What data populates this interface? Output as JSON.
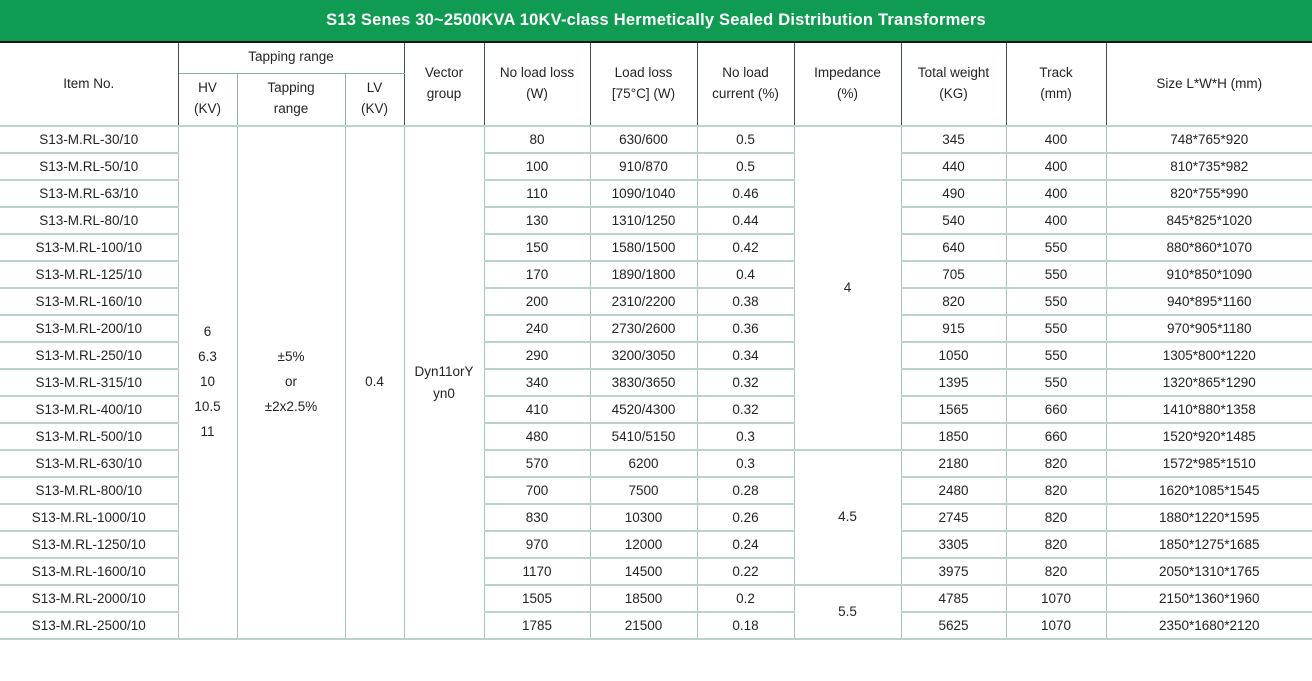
{
  "title": "S13 Senes 30~2500KVA 10KV-class Hermetically Sealed Distribution Transformers",
  "colors": {
    "title_bar_green": "#0f9b51",
    "border_teal": "#a5c6bf",
    "header_border_dark": "#42514c",
    "text": "#242424"
  },
  "headers": {
    "item_no": "Item No.",
    "tapping_group": "Tapping range",
    "hv": "HV\n(KV)",
    "tapping": "Tapping\nrange",
    "lv": "LV\n(KV)",
    "vector": "Vector\ngroup",
    "no_load_loss": "No load loss\n(W)",
    "load_loss": "Load loss\n[75°C] (W)",
    "no_load_current": "No load\ncurrent (%)",
    "impedance": "Impedance\n(%)",
    "total_weight": "Total weight\n(KG)",
    "track": "Track\n(mm)",
    "size": "Size L*W*H (mm)"
  },
  "merged": {
    "hv": "6\n6.3\n10\n10.5\n11",
    "tapping": "±5%\nor\n±2x2.5%",
    "lv": "0.4",
    "vector": "Dyn11orY\nyn0"
  },
  "impedance_groups": [
    {
      "value": "4",
      "span": 12
    },
    {
      "value": "4.5",
      "span": 5
    },
    {
      "value": "5.5",
      "span": 2
    }
  ],
  "rows": [
    [
      "S13-M.RL-30/10",
      "80",
      "630/600",
      "0.5",
      "345",
      "400",
      "748*765*920"
    ],
    [
      "S13-M.RL-50/10",
      "100",
      "910/870",
      "0.5",
      "440",
      "400",
      "810*735*982"
    ],
    [
      "S13-M.RL-63/10",
      "110",
      "1090/1040",
      "0.46",
      "490",
      "400",
      "820*755*990"
    ],
    [
      "S13-M.RL-80/10",
      "130",
      "1310/1250",
      "0.44",
      "540",
      "400",
      "845*825*1020"
    ],
    [
      "S13-M.RL-100/10",
      "150",
      "1580/1500",
      "0.42",
      "640",
      "550",
      "880*860*1070"
    ],
    [
      "S13-M.RL-125/10",
      "170",
      "1890/1800",
      "0.4",
      "705",
      "550",
      "910*850*1090"
    ],
    [
      "S13-M.RL-160/10",
      "200",
      "2310/2200",
      "0.38",
      "820",
      "550",
      "940*895*1160"
    ],
    [
      "S13-M.RL-200/10",
      "240",
      "2730/2600",
      "0.36",
      "915",
      "550",
      "970*905*1180"
    ],
    [
      "S13-M.RL-250/10",
      "290",
      "3200/3050",
      "0.34",
      "1050",
      "550",
      "1305*800*1220"
    ],
    [
      "S13-M.RL-315/10",
      "340",
      "3830/3650",
      "0.32",
      "1395",
      "550",
      "1320*865*1290"
    ],
    [
      "S13-M.RL-400/10",
      "410",
      "4520/4300",
      "0.32",
      "1565",
      "660",
      "1410*880*1358"
    ],
    [
      "S13-M.RL-500/10",
      "480",
      "5410/5150",
      "0.3",
      "1850",
      "660",
      "1520*920*1485"
    ],
    [
      "S13-M.RL-630/10",
      "570",
      "6200",
      "0.3",
      "2180",
      "820",
      "1572*985*1510"
    ],
    [
      "S13-M.RL-800/10",
      "700",
      "7500",
      "0.28",
      "2480",
      "820",
      "1620*1085*1545"
    ],
    [
      "S13-M.RL-1000/10",
      "830",
      "10300",
      "0.26",
      "2745",
      "820",
      "1880*1220*1595"
    ],
    [
      "S13-M.RL-1250/10",
      "970",
      "12000",
      "0.24",
      "3305",
      "820",
      "1850*1275*1685"
    ],
    [
      "S13-M.RL-1600/10",
      "1170",
      "14500",
      "0.22",
      "3975",
      "820",
      "2050*1310*1765"
    ],
    [
      "S13-M.RL-2000/10",
      "1505",
      "18500",
      "0.2",
      "4785",
      "1070",
      "2150*1360*1960"
    ],
    [
      "S13-M.RL-2500/10",
      "1785",
      "21500",
      "0.18",
      "5625",
      "1070",
      "2350*1680*2120"
    ]
  ]
}
